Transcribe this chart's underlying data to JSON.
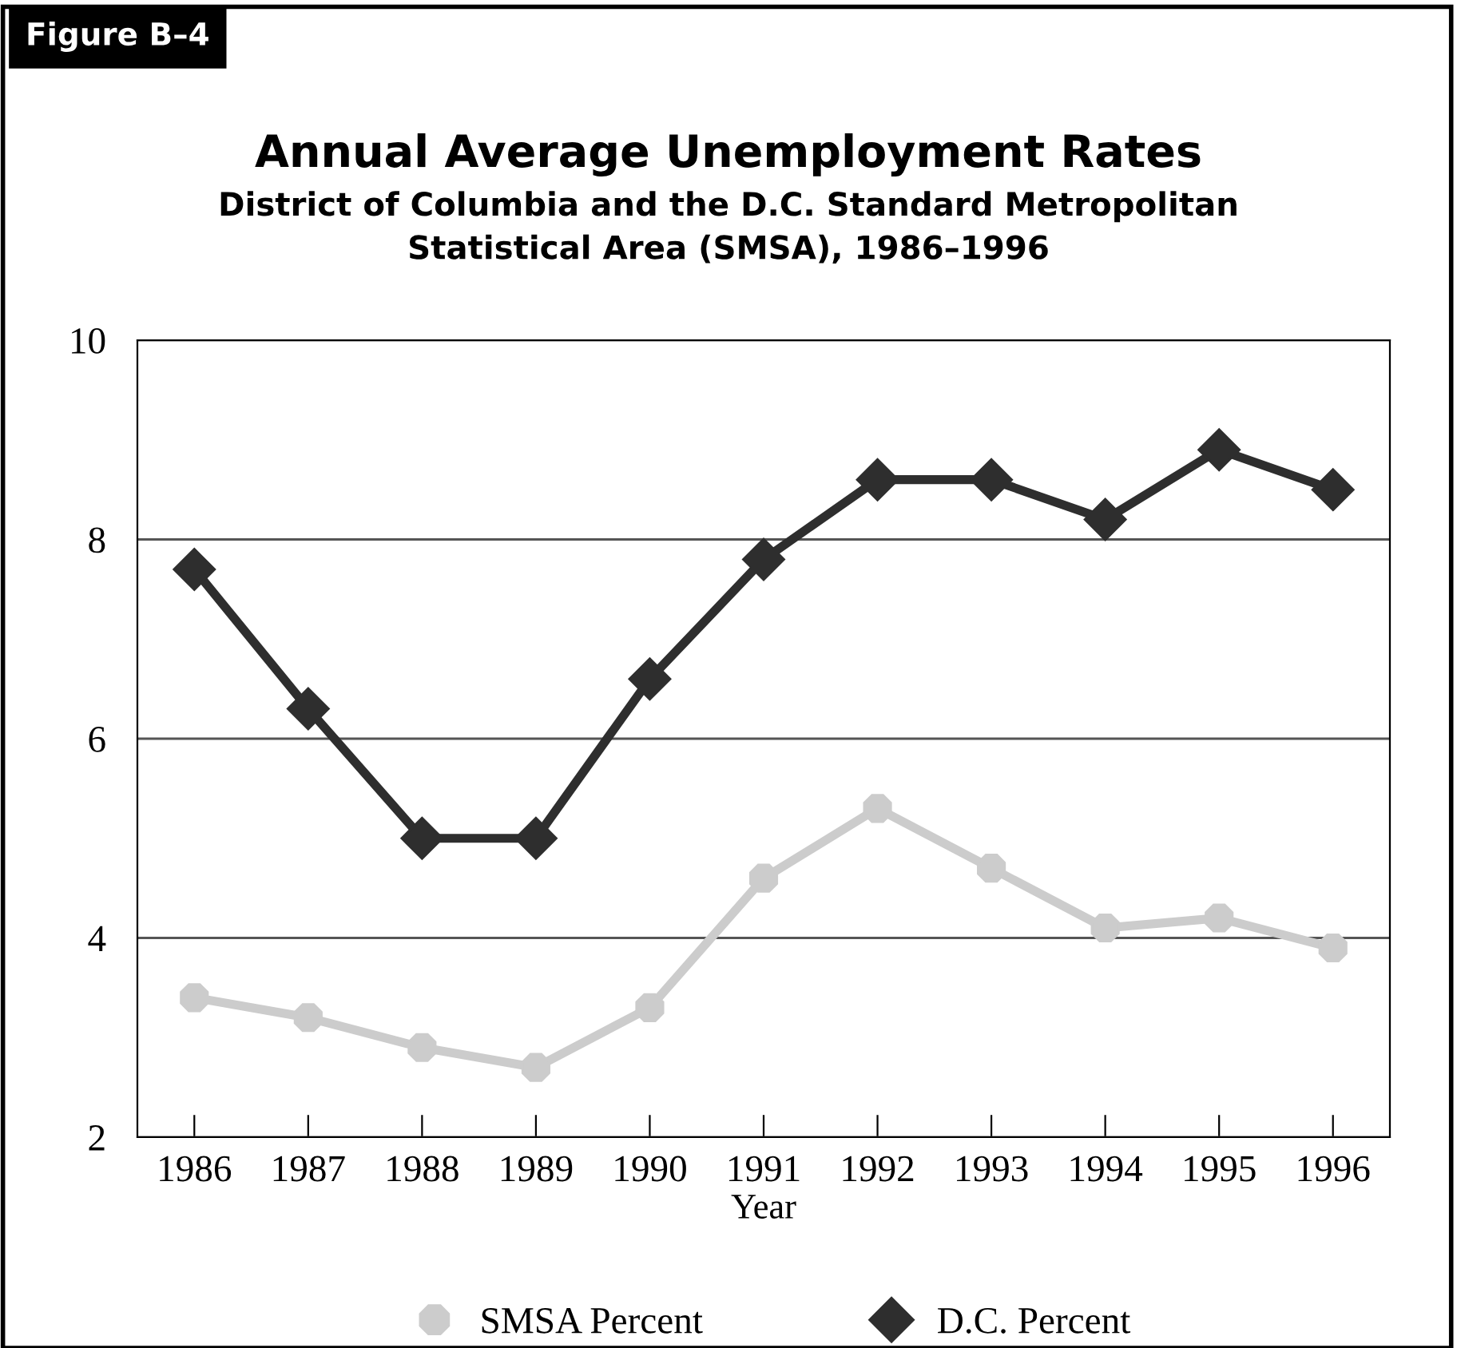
{
  "chart_data": {
    "type": "line",
    "title": "Annual Average Unemployment Rates",
    "subtitle": "District of Columbia and the D.C. Standard Metropolitan\nStatistical Area (SMSA), 1986–1996",
    "annotations": [
      "Figure B–4"
    ],
    "xlabel": "Year",
    "categories": [
      "1986",
      "1987",
      "1988",
      "1989",
      "1990",
      "1991",
      "1992",
      "1993",
      "1994",
      "1995",
      "1996"
    ],
    "series": [
      {
        "name": "SMSA Percent",
        "color": "#cccccc",
        "marker": "circle",
        "values": [
          3.4,
          3.2,
          2.9,
          2.7,
          3.3,
          4.6,
          5.3,
          4.7,
          4.1,
          4.2,
          3.9
        ]
      },
      {
        "name": "D.C. Percent",
        "color": "#2e2e2e",
        "marker": "diamond",
        "values": [
          7.7,
          6.3,
          5.0,
          5.0,
          6.6,
          7.8,
          8.6,
          8.6,
          8.2,
          8.9,
          8.5
        ]
      }
    ],
    "ylim": [
      2,
      10
    ],
    "yticks": [
      2,
      4,
      6,
      8,
      10
    ],
    "grid": "y",
    "legend": "bottom",
    "line_style": "solid"
  }
}
